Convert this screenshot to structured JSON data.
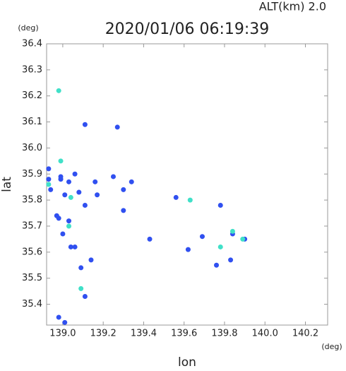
{
  "chart_data": {
    "type": "scatter",
    "title": "2020/01/06 06:19:39",
    "subtitle": "ALT(km) 2.0",
    "x_unit": "(deg)",
    "y_unit": "(deg)",
    "x_label": "lon",
    "y_label": "lat",
    "xlim": [
      138.92,
      140.31
    ],
    "ylim": [
      35.32,
      36.4
    ],
    "xticks": [
      {
        "value": 139.0,
        "label": "139.0"
      },
      139.2,
      139.4,
      139.6,
      139.8,
      {
        "value": 140.0,
        "label": "140.0"
      },
      140.2
    ],
    "yticks": [
      36.4,
      36.3,
      36.2,
      36.1,
      {
        "value": 36.0,
        "label": "36.0"
      },
      35.9,
      35.8,
      35.7,
      35.6,
      35.5,
      35.4
    ],
    "series": [
      {
        "color": "#3050f0",
        "x": [
          138.93,
          138.93,
          138.94,
          138.99,
          138.97,
          138.98,
          138.99,
          139.03,
          139.01,
          139.06,
          139.08,
          139.11,
          139.16,
          139.17,
          139.03,
          139.0,
          139.06,
          139.09,
          139.14,
          139.11,
          138.98,
          139.01,
          139.3,
          139.34,
          139.25,
          139.3,
          139.43,
          139.56,
          139.62,
          139.76,
          139.83,
          139.84,
          139.9,
          139.69,
          139.78,
          139.27,
          139.11,
          139.04
        ],
        "values": [
          35.92,
          35.88,
          35.84,
          35.89,
          35.74,
          35.73,
          35.88,
          35.87,
          35.82,
          35.9,
          35.83,
          35.78,
          35.87,
          35.82,
          35.72,
          35.67,
          35.62,
          35.54,
          35.57,
          35.43,
          35.35,
          35.33,
          35.84,
          35.87,
          35.89,
          35.76,
          35.65,
          35.81,
          35.61,
          35.55,
          35.57,
          35.67,
          35.65,
          35.66,
          35.78,
          36.08,
          36.09,
          35.62
        ]
      },
      {
        "color": "#40e0c8",
        "x": [
          138.98,
          138.93,
          138.99,
          139.03,
          139.09,
          139.78,
          139.84,
          139.89,
          139.63,
          139.04
        ],
        "values": [
          36.22,
          35.86,
          35.95,
          35.7,
          35.46,
          35.62,
          35.68,
          35.65,
          35.8,
          35.81
        ]
      }
    ]
  }
}
